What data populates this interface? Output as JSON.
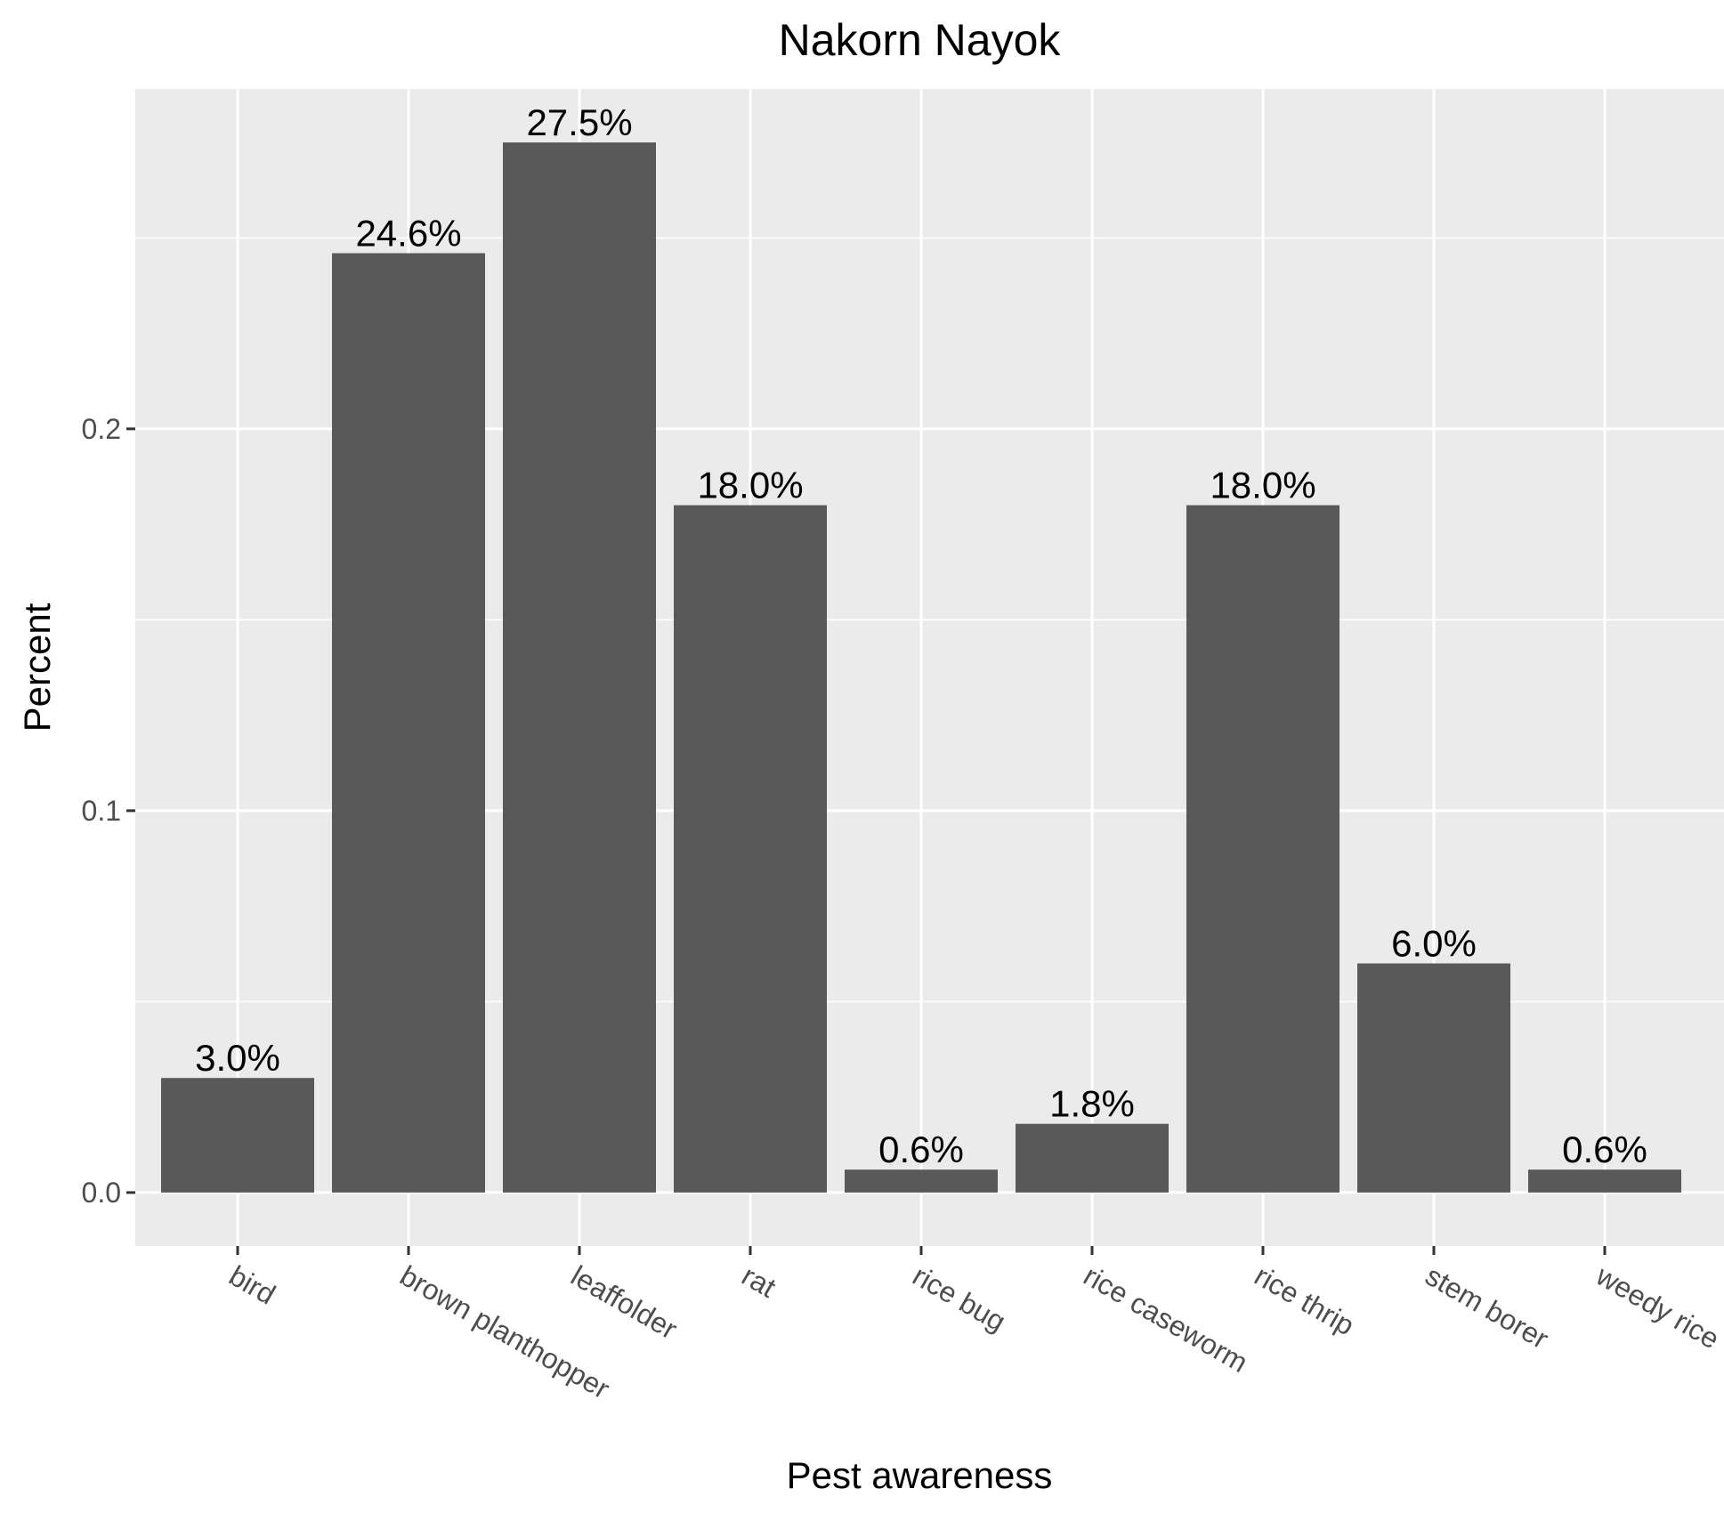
{
  "chart_data": {
    "type": "bar",
    "title": "Nakorn Nayok",
    "xlabel": "Pest awareness",
    "ylabel": "Percent",
    "categories": [
      "bird",
      "brown planthopper",
      "leaffolder",
      "rat",
      "rice bug",
      "rice caseworm",
      "rice thrip",
      "stem borer",
      "weedy rice"
    ],
    "values": [
      0.03,
      0.246,
      0.275,
      0.18,
      0.006,
      0.018,
      0.18,
      0.06,
      0.006
    ],
    "data_labels": [
      "3.0%",
      "24.6%",
      "27.5%",
      "18.0%",
      "0.6%",
      "1.8%",
      "18.0%",
      "6.0%",
      "0.6%"
    ],
    "yticks": [
      0.0,
      0.1,
      0.2
    ],
    "ytick_labels": [
      "0.0",
      "0.1",
      "0.2"
    ],
    "ylim": [
      -0.014,
      0.289
    ],
    "grid": true,
    "legend": "none",
    "colors": {
      "bar": "#595959",
      "panel": "#ebebeb",
      "grid": "#ffffff"
    }
  }
}
